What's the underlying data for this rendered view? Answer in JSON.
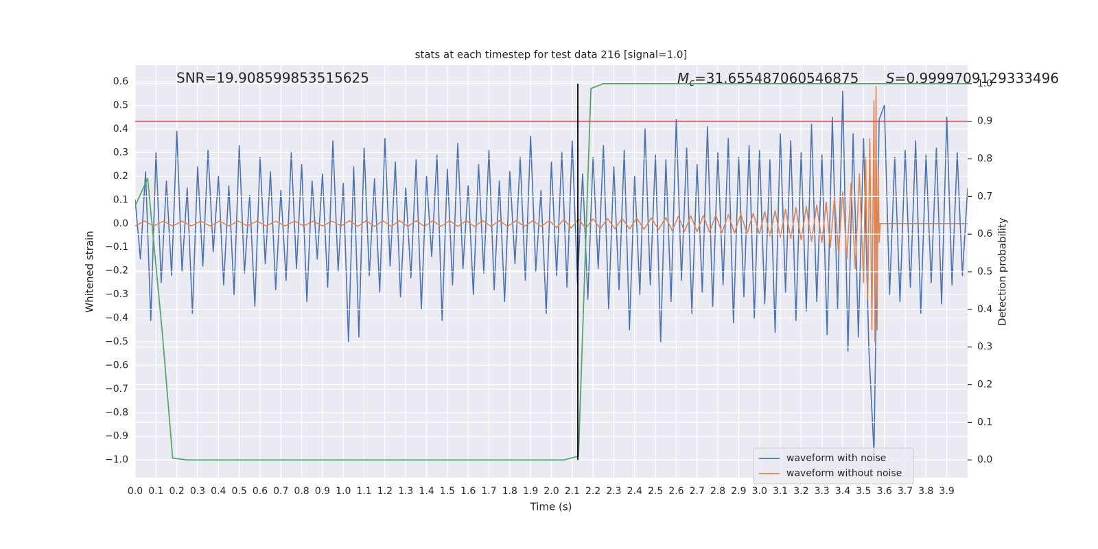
{
  "chart_data": {
    "type": "line",
    "title": "stats at each timestep for test data 216 [signal=1.0]",
    "xlabel": "Time (s)",
    "ylabel": "Whitened strain",
    "y2label": "Detection probability",
    "annotations": {
      "snr": "SNR=19.908599853515625",
      "mc": {
        "symbol": "M",
        "subscript": "c",
        "text": "=31.655487060546875"
      },
      "s": {
        "symbol": "S",
        "text": "=0.9999709129333496"
      }
    },
    "xlim": [
      0,
      4.0
    ],
    "ylim": [
      -1.075,
      0.67
    ],
    "y2lim": [
      -0.047,
      1.049
    ],
    "grid": true,
    "legend": "lower right",
    "xticks": [
      {
        "value": 0,
        "label": "0.0"
      },
      0.1,
      0.2,
      0.3,
      0.4,
      0.5,
      0.6,
      0.7,
      0.8,
      0.9,
      {
        "value": 1,
        "label": "1.0"
      },
      1.1,
      1.2,
      1.3,
      1.4,
      1.5,
      1.6,
      1.7,
      1.8,
      1.9,
      {
        "value": 2,
        "label": "2.0"
      },
      2.1,
      2.2,
      2.3,
      2.4,
      2.5,
      2.6,
      2.7,
      2.8,
      2.9,
      {
        "value": 3,
        "label": "3.0"
      },
      3.1,
      3.2,
      3.3,
      3.4,
      3.5,
      3.6,
      3.7,
      3.8,
      3.9
    ],
    "yticks": [
      0.6,
      0.5,
      0.4,
      0.3,
      0.2,
      0.1,
      {
        "value": 0,
        "label": "0.0"
      },
      {
        "value": -0.1,
        "label": "−0.1"
      },
      {
        "value": -0.2,
        "label": "−0.2"
      },
      {
        "value": -0.3,
        "label": "−0.3"
      },
      {
        "value": -0.4,
        "label": "−0.4"
      },
      {
        "value": -0.5,
        "label": "−0.5"
      },
      {
        "value": -0.6,
        "label": "−0.6"
      },
      {
        "value": -0.7,
        "label": "−0.7"
      },
      {
        "value": -0.8,
        "label": "−0.8"
      },
      {
        "value": -0.9,
        "label": "−0.9"
      },
      {
        "value": -1,
        "label": "−1.0"
      }
    ],
    "y2ticks": [
      {
        "value": 0,
        "label": "0.0"
      },
      0.1,
      0.2,
      0.3,
      0.4,
      0.5,
      0.6,
      0.7,
      0.8,
      0.9,
      {
        "value": 1,
        "label": "1.0"
      }
    ],
    "threshold": {
      "y2": 0.9,
      "color": "#c44e52"
    },
    "vline": {
      "x": 2.127,
      "y2": [
        0,
        1
      ],
      "color": "#000000"
    },
    "series": [
      {
        "name": "waveform with noise",
        "color": "#4c72b0",
        "axis": "y",
        "x": [
          0,
          0.025,
          0.05,
          0.075,
          0.1,
          0.125,
          0.15,
          0.175,
          0.2,
          0.225,
          0.25,
          0.275,
          0.3,
          0.325,
          0.35,
          0.375,
          0.4,
          0.425,
          0.45,
          0.475,
          0.5,
          0.525,
          0.55,
          0.575,
          0.6,
          0.625,
          0.65,
          0.675,
          0.7,
          0.725,
          0.75,
          0.775,
          0.8,
          0.825,
          0.85,
          0.875,
          0.9,
          0.925,
          0.95,
          0.975,
          1,
          1.025,
          1.05,
          1.075,
          1.1,
          1.125,
          1.15,
          1.175,
          1.2,
          1.225,
          1.25,
          1.275,
          1.3,
          1.325,
          1.35,
          1.375,
          1.4,
          1.425,
          1.45,
          1.475,
          1.5,
          1.525,
          1.55,
          1.575,
          1.6,
          1.625,
          1.65,
          1.675,
          1.7,
          1.725,
          1.75,
          1.775,
          1.8,
          1.825,
          1.85,
          1.875,
          1.9,
          1.925,
          1.95,
          1.975,
          2,
          2.025,
          2.05,
          2.075,
          2.1,
          2.125,
          2.15,
          2.175,
          2.2,
          2.225,
          2.25,
          2.275,
          2.3,
          2.325,
          2.35,
          2.375,
          2.4,
          2.425,
          2.45,
          2.475,
          2.5,
          2.525,
          2.55,
          2.575,
          2.6,
          2.625,
          2.65,
          2.675,
          2.7,
          2.725,
          2.75,
          2.775,
          2.8,
          2.825,
          2.85,
          2.875,
          2.9,
          2.925,
          2.95,
          2.975,
          3,
          3.025,
          3.05,
          3.075,
          3.1,
          3.125,
          3.15,
          3.175,
          3.2,
          3.225,
          3.25,
          3.275,
          3.3,
          3.325,
          3.35,
          3.375,
          3.4,
          3.425,
          3.45,
          3.475,
          3.5,
          3.525,
          3.55,
          3.575,
          3.6,
          3.625,
          3.65,
          3.675,
          3.7,
          3.725,
          3.75,
          3.775,
          3.8,
          3.825,
          3.85,
          3.875,
          3.9,
          3.925,
          3.95,
          3.975,
          4
        ],
        "values": [
          0.1,
          -0.15,
          0.22,
          -0.41,
          0.3,
          -0.25,
          0.18,
          -0.22,
          0.39,
          -0.2,
          0.15,
          -0.38,
          0.24,
          -0.18,
          0.31,
          -0.12,
          0.2,
          -0.26,
          0.16,
          -0.3,
          0.33,
          -0.21,
          0.12,
          -0.35,
          0.28,
          -0.17,
          0.22,
          -0.28,
          0.14,
          -0.24,
          0.3,
          -0.19,
          0.25,
          -0.33,
          0.18,
          -0.15,
          0.21,
          -0.27,
          0.35,
          -0.2,
          0.17,
          -0.5,
          0.24,
          -0.48,
          0.32,
          -0.22,
          0.19,
          -0.29,
          0.36,
          -0.18,
          0.26,
          -0.31,
          0.15,
          -0.23,
          0.27,
          -0.36,
          0.2,
          -0.14,
          0.29,
          -0.41,
          0.23,
          -0.26,
          0.34,
          -0.19,
          0.16,
          -0.3,
          0.25,
          -0.21,
          0.31,
          -0.28,
          0.18,
          -0.33,
          0.22,
          -0.17,
          0.28,
          -0.24,
          0.37,
          -0.2,
          0.14,
          -0.38,
          0.26,
          -0.22,
          0.3,
          -0.27,
          0.35,
          -0.25,
          0.21,
          -0.32,
          0.28,
          -0.19,
          0.33,
          -0.36,
          0.24,
          -0.28,
          0.31,
          -0.45,
          0.2,
          -0.3,
          0.4,
          -0.26,
          0.29,
          -0.5,
          0.27,
          -0.33,
          0.44,
          -0.24,
          0.32,
          -0.38,
          0.25,
          -0.29,
          0.41,
          -0.35,
          0.3,
          -0.26,
          0.36,
          -0.42,
          0.28,
          -0.31,
          0.33,
          -0.4,
          0.31,
          -0.34,
          0.27,
          -0.46,
          0.38,
          -0.29,
          0.35,
          -0.41,
          0.3,
          -0.37,
          0.42,
          -0.33,
          0.29,
          -0.47,
          0.45,
          -0.36,
          0.56,
          -0.54,
          0.38,
          -0.48,
          0.36,
          -0.52,
          -0.97,
          0.44,
          0.5,
          -0.3,
          0.28,
          -0.33,
          0.31,
          -0.27,
          0.35,
          -0.38,
          0.29,
          -0.25,
          0.32,
          -0.34,
          0.45,
          -0.26,
          0.3,
          -0.22,
          0.15
        ]
      },
      {
        "name": "waveform without noise",
        "color": "#dd8452",
        "axis": "y",
        "x": [
          0,
          0.045,
          0.09,
          0.135,
          0.18,
          0.225,
          0.27,
          0.315,
          0.36,
          0.405,
          0.45,
          0.495,
          0.54,
          0.585,
          0.63,
          0.675,
          0.72,
          0.765,
          0.81,
          0.855,
          0.9,
          0.945,
          0.99,
          1.03,
          1.07,
          1.11,
          1.15,
          1.19,
          1.23,
          1.27,
          1.31,
          1.35,
          1.39,
          1.43,
          1.47,
          1.51,
          1.55,
          1.59,
          1.63,
          1.67,
          1.71,
          1.75,
          1.79,
          1.83,
          1.87,
          1.91,
          1.95,
          1.99,
          2.025,
          2.06,
          2.095,
          2.13,
          2.165,
          2.2,
          2.235,
          2.27,
          2.305,
          2.34,
          2.375,
          2.41,
          2.445,
          2.48,
          2.515,
          2.55,
          2.58,
          2.61,
          2.64,
          2.67,
          2.7,
          2.73,
          2.76,
          2.79,
          2.82,
          2.85,
          2.88,
          2.91,
          2.94,
          2.97,
          3,
          3.025,
          3.05,
          3.075,
          3.1,
          3.125,
          3.15,
          3.175,
          3.2,
          3.225,
          3.25,
          3.275,
          3.3,
          3.32,
          3.34,
          3.36,
          3.38,
          3.4,
          3.42,
          3.44,
          3.46,
          3.48,
          3.5,
          3.51,
          3.52,
          3.53,
          3.54,
          3.55,
          3.555,
          3.56,
          3.565,
          3.57,
          3.575,
          3.58,
          4
        ],
        "values": [
          -0.01,
          0.01,
          -0.01,
          0.01,
          -0.01,
          0.01,
          -0.01,
          0.01,
          -0.01,
          0.01,
          -0.01,
          0.01,
          -0.01,
          0.01,
          -0.01,
          0.01,
          -0.01,
          0.01,
          -0.01,
          0.01,
          -0.01,
          0.01,
          -0.01,
          0.012,
          -0.012,
          0.012,
          -0.012,
          0.012,
          -0.012,
          0.012,
          -0.012,
          0.012,
          -0.012,
          0.012,
          -0.012,
          0.012,
          -0.012,
          0.012,
          -0.012,
          0.012,
          -0.012,
          0.012,
          -0.012,
          0.012,
          -0.012,
          0.012,
          -0.012,
          0.012,
          -0.018,
          0.018,
          -0.019,
          0.019,
          -0.02,
          0.02,
          -0.021,
          0.021,
          -0.022,
          0.022,
          -0.023,
          0.023,
          -0.024,
          0.024,
          -0.025,
          0.025,
          -0.03,
          0.03,
          -0.032,
          0.032,
          -0.034,
          0.034,
          -0.036,
          0.036,
          -0.038,
          0.038,
          -0.04,
          0.04,
          -0.043,
          0.043,
          -0.045,
          0.05,
          -0.052,
          0.055,
          -0.058,
          0.06,
          -0.063,
          0.066,
          -0.069,
          0.072,
          -0.075,
          0.078,
          -0.08,
          0.09,
          -0.1,
          0.11,
          -0.12,
          0.135,
          -0.15,
          0.17,
          -0.19,
          0.21,
          -0.25,
          0.28,
          -0.32,
          0.36,
          -0.45,
          0.52,
          -0.5,
          0.58,
          -0.45,
          0.25,
          -0.08,
          0,
          0
        ]
      },
      {
        "color": "#55a868",
        "axis": "y2",
        "x": [
          0,
          0.06,
          0.13,
          0.18,
          0.25,
          2.06,
          2.13,
          2.19,
          2.25,
          4
        ],
        "values": [
          0.675,
          0.748,
          0.34,
          0.005,
          0,
          0,
          0.01,
          0.987,
          1,
          1
        ]
      }
    ]
  }
}
